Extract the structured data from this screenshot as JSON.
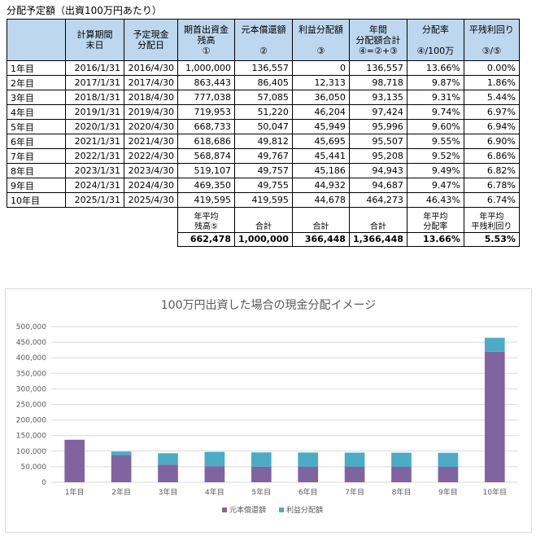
{
  "caption": "分配予定額（出資100万円あたり）",
  "table": {
    "headers": [
      "",
      "計算期間\n末日",
      "予定現金\n分配日",
      "期首出資金\n残高\n①",
      "元本償還額\n\n②",
      "利益分配額\n\n③",
      "年間\n分配額合計\n④=②+③",
      "分配率\n\n④/100万",
      "平残利回り\n\n③/⑤"
    ],
    "rows": [
      [
        "1年目",
        "2016/1/31",
        "2016/4/30",
        "1,000,000",
        "136,557",
        "0",
        "136,557",
        "13.66%",
        "0.00%"
      ],
      [
        "2年目",
        "2017/1/31",
        "2017/4/30",
        "863,443",
        "86,405",
        "12,313",
        "98,718",
        "9.87%",
        "1.86%"
      ],
      [
        "3年目",
        "2018/1/31",
        "2018/4/30",
        "777,038",
        "57,085",
        "36,050",
        "93,135",
        "9.31%",
        "5.44%"
      ],
      [
        "4年目",
        "2019/1/31",
        "2019/4/30",
        "719,953",
        "51,220",
        "46,204",
        "97,424",
        "9.74%",
        "6.97%"
      ],
      [
        "5年目",
        "2020/1/31",
        "2020/4/30",
        "668,733",
        "50,047",
        "45,949",
        "95,996",
        "9.60%",
        "6.94%"
      ],
      [
        "6年目",
        "2021/1/31",
        "2021/4/30",
        "618,686",
        "49,812",
        "45,695",
        "95,507",
        "9.55%",
        "6.90%"
      ],
      [
        "7年目",
        "2022/1/31",
        "2022/4/30",
        "568,874",
        "49,767",
        "45,441",
        "95,208",
        "9.52%",
        "6.86%"
      ],
      [
        "8年目",
        "2023/1/31",
        "2023/4/30",
        "519,107",
        "49,757",
        "45,186",
        "94,943",
        "9.49%",
        "6.82%"
      ],
      [
        "9年目",
        "2024/1/31",
        "2024/4/30",
        "469,350",
        "49,755",
        "44,932",
        "94,687",
        "9.47%",
        "6.78%"
      ],
      [
        "10年目",
        "2025/1/31",
        "2025/4/30",
        "419,595",
        "419,595",
        "44,678",
        "464,273",
        "46.43%",
        "6.74%"
      ]
    ],
    "summary_labels": [
      "年平均\n残高⑤",
      "合計",
      "合計",
      "合計",
      "年平均\n分配率",
      "年平均\n平残利回り"
    ],
    "summary_values": [
      "662,478",
      "1,000,000",
      "366,448",
      "1,366,448",
      "13.66%",
      "5.53%"
    ]
  },
  "chart_data": {
    "type": "bar",
    "stacked": true,
    "title": "100万円出資した場合の現金分配イメージ",
    "categories": [
      "1年目",
      "2年目",
      "3年目",
      "4年目",
      "5年目",
      "6年目",
      "7年目",
      "8年目",
      "9年目",
      "10年目"
    ],
    "series": [
      {
        "name": "元本償還額",
        "color": "#8064a2",
        "values": [
          136557,
          86405,
          57085,
          51220,
          50047,
          49812,
          49767,
          49757,
          49755,
          419595
        ]
      },
      {
        "name": "利益分配額",
        "color": "#4bacc6",
        "values": [
          0,
          12313,
          36050,
          46204,
          45949,
          45695,
          45441,
          45186,
          44932,
          44678
        ]
      }
    ],
    "ylim": [
      0,
      500000
    ],
    "yticks": [
      "0",
      "50,000",
      "100,000",
      "150,000",
      "200,000",
      "250,000",
      "300,000",
      "350,000",
      "400,000",
      "450,000",
      "500,000"
    ],
    "grid": true,
    "legend": "bottom"
  }
}
